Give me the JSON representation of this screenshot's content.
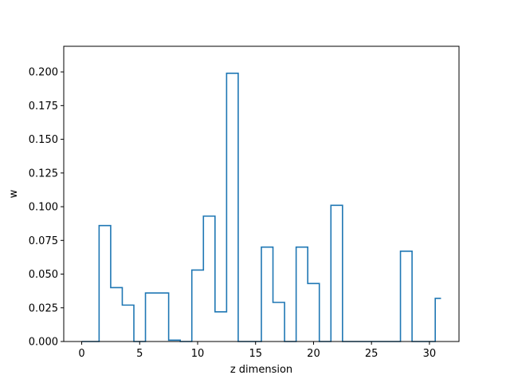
{
  "chart_data": {
    "type": "line",
    "drawstyle": "steps-mid",
    "title": "",
    "xlabel": "z dimension",
    "ylabel": "w",
    "xlim": [
      -1.55,
      32.55
    ],
    "ylim": [
      0.0,
      0.219
    ],
    "x_ticks": [
      0,
      5,
      10,
      15,
      20,
      25,
      30
    ],
    "x_tick_labels": [
      "0",
      "5",
      "10",
      "15",
      "20",
      "25",
      "30"
    ],
    "y_ticks": [
      0.0,
      0.025,
      0.05,
      0.075,
      0.1,
      0.125,
      0.15,
      0.175,
      0.2
    ],
    "y_tick_labels": [
      "0.000",
      "0.025",
      "0.050",
      "0.075",
      "0.100",
      "0.125",
      "0.150",
      "0.175",
      "0.200"
    ],
    "grid": false,
    "series": [
      {
        "color": "#1f77b4",
        "x": [
          0,
          1,
          2,
          3,
          4,
          5,
          6,
          7,
          8,
          9,
          10,
          11,
          12,
          13,
          14,
          15,
          16,
          17,
          18,
          19,
          20,
          21,
          22,
          23,
          24,
          25,
          26,
          27,
          28,
          29,
          30,
          31
        ],
        "y": [
          0.0,
          0.0,
          0.086,
          0.04,
          0.027,
          0.0,
          0.036,
          0.036,
          0.001,
          0.0,
          0.053,
          0.093,
          0.022,
          0.199,
          0.0,
          0.0,
          0.07,
          0.029,
          0.0,
          0.07,
          0.043,
          0.0,
          0.101,
          0.0,
          0.0,
          0.0,
          0.0,
          0.0,
          0.067,
          0.0,
          0.0,
          0.032
        ]
      }
    ]
  }
}
